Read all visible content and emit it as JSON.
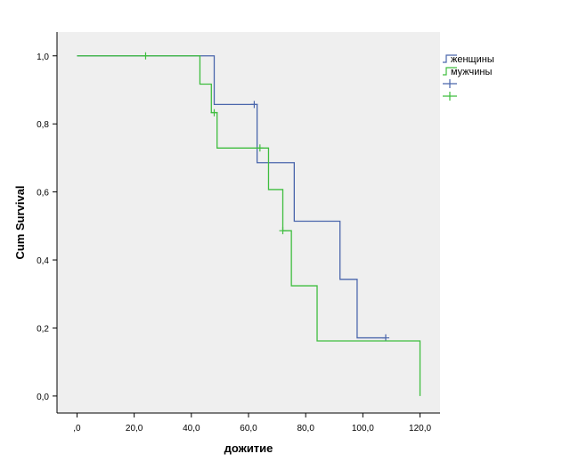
{
  "chart_data": {
    "type": "line",
    "subtype": "kaplan-meier-survival",
    "xlabel": "дожитие",
    "ylabel": "Cum Survival",
    "xlim": [
      -7,
      127
    ],
    "ylim": [
      -0.05,
      1.07
    ],
    "x_ticks": [
      0,
      20,
      40,
      60,
      80,
      100,
      120
    ],
    "x_tick_labels": [
      ",0",
      "20,0",
      "40,0",
      "60,0",
      "80,0",
      "100,0",
      "120,0"
    ],
    "y_ticks": [
      0,
      0.2,
      0.4,
      0.6,
      0.8,
      1.0
    ],
    "y_tick_labels": [
      "0,0",
      "0,2",
      "0,4",
      "0,6",
      "0,8",
      "1,0"
    ],
    "grid": false,
    "plot_background": "#efefef",
    "legend_position": "right",
    "series": [
      {
        "name": "женщины",
        "color": "#4a66ac",
        "points": [
          {
            "x": 0,
            "y": 1.0
          },
          {
            "x": 48,
            "y": 0.857
          },
          {
            "x": 63,
            "y": 0.686
          },
          {
            "x": 76,
            "y": 0.514
          },
          {
            "x": 92,
            "y": 0.343
          },
          {
            "x": 98,
            "y": 0.171
          },
          {
            "x": 108,
            "y": 0.171
          }
        ],
        "censored": [
          {
            "x": 62,
            "y": 0.857
          },
          {
            "x": 108,
            "y": 0.171
          }
        ]
      },
      {
        "name": "мужчины",
        "color": "#3ebd3e",
        "points": [
          {
            "x": 0,
            "y": 1.0
          },
          {
            "x": 43,
            "y": 0.917
          },
          {
            "x": 47,
            "y": 0.833
          },
          {
            "x": 49,
            "y": 0.729
          },
          {
            "x": 67,
            "y": 0.607
          },
          {
            "x": 72,
            "y": 0.486
          },
          {
            "x": 75,
            "y": 0.324
          },
          {
            "x": 84,
            "y": 0.162
          },
          {
            "x": 120,
            "y": 0.162
          },
          {
            "x": 120,
            "y": 0.0
          }
        ],
        "censored": [
          {
            "x": 24,
            "y": 1.0
          },
          {
            "x": 48,
            "y": 0.833
          },
          {
            "x": 64,
            "y": 0.729
          },
          {
            "x": 72,
            "y": 0.486
          }
        ]
      }
    ],
    "legend": [
      {
        "label": "женщины",
        "color": "#4a66ac",
        "symbol": "line"
      },
      {
        "label": "мужчины",
        "color": "#3ebd3e",
        "symbol": "line"
      },
      {
        "label": "",
        "color": "#4a66ac",
        "symbol": "censor"
      },
      {
        "label": "",
        "color": "#3ebd3e",
        "symbol": "censor"
      }
    ]
  }
}
